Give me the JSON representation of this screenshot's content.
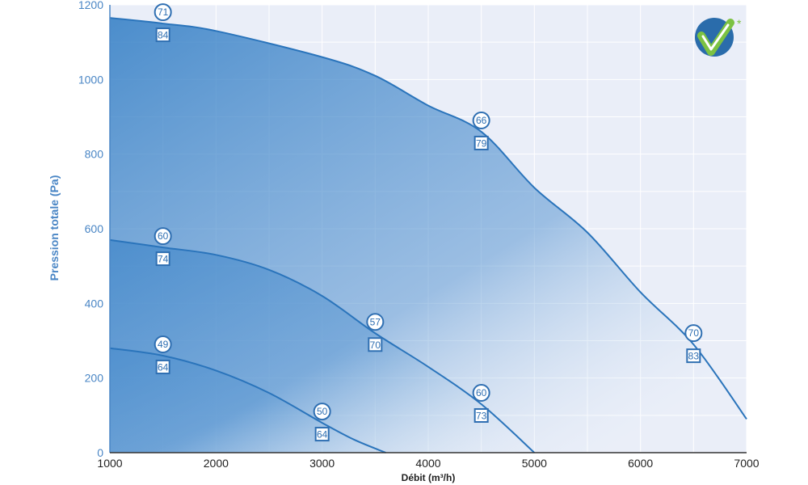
{
  "chart_data": {
    "type": "area",
    "xlabel": "Débit (m³/h)",
    "ylabel": "Pression totale (Pa)",
    "xlim": [
      1000,
      7000
    ],
    "ylim": [
      0,
      1200
    ],
    "xticks": [
      1000,
      2000,
      3000,
      4000,
      5000,
      6000,
      7000
    ],
    "yticks": [
      0,
      200,
      400,
      600,
      800,
      1000,
      1200
    ],
    "grid": true,
    "series": [
      {
        "x": [
          1000,
          1500,
          2000,
          2500,
          3000,
          3300,
          3600
        ],
        "y": [
          280,
          260,
          220,
          160,
          80,
          35,
          0
        ],
        "markers": [
          {
            "x": 1500,
            "circle": "49",
            "square": "64"
          },
          {
            "x": 3000,
            "circle": "50",
            "square": "64"
          }
        ]
      },
      {
        "x": [
          1000,
          1500,
          2000,
          2500,
          3000,
          3500,
          4000,
          4500,
          5000
        ],
        "y": [
          570,
          550,
          530,
          490,
          420,
          320,
          230,
          130,
          0
        ],
        "markers": [
          {
            "x": 1500,
            "circle": "60",
            "square": "74"
          },
          {
            "x": 3500,
            "circle": "57",
            "square": "70"
          },
          {
            "x": 4500,
            "circle": "60",
            "square": "73"
          }
        ]
      },
      {
        "x": [
          1000,
          1500,
          2000,
          3000,
          3500,
          4000,
          4500,
          5000,
          5500,
          6000,
          6500,
          7000
        ],
        "y": [
          1165,
          1150,
          1130,
          1060,
          1010,
          930,
          860,
          710,
          590,
          430,
          290,
          90
        ],
        "markers": [
          {
            "x": 1500,
            "circle": "71",
            "square": "84"
          },
          {
            "x": 4500,
            "circle": "66",
            "square": "79"
          },
          {
            "x": 6500,
            "circle": "70",
            "square": "83"
          }
        ]
      }
    ]
  },
  "logo": {
    "icon": "checkmark-badge-icon",
    "asterisk": "*"
  },
  "colors": {
    "plot_bg": "#eaeef8",
    "grid": "#ffffff",
    "area_dark": "#3b82c6",
    "area_light": "#ffffff",
    "line": "#2a74bb",
    "marker": "#2f6fb2",
    "y_axis_text": "#4a86c5",
    "x_axis_text": "#1f1f1f",
    "logo_blue": "#2a6cab",
    "logo_green": "#7cc242"
  }
}
